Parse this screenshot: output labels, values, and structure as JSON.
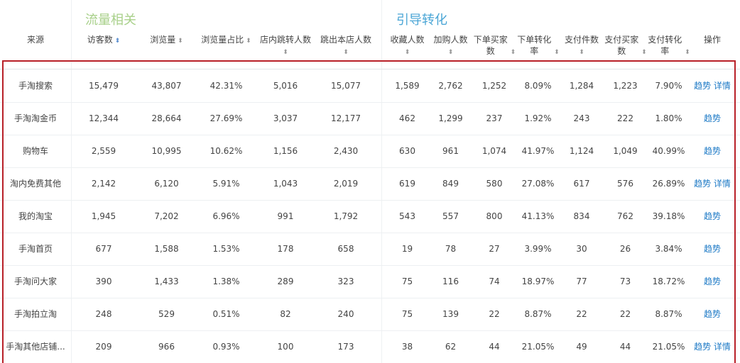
{
  "groups": {
    "traffic": "流量相关",
    "conversion": "引导转化"
  },
  "colors": {
    "traffic_group": "#a8d08a",
    "conversion_group": "#4ba6d6",
    "link": "#1e7ac6",
    "highlight_border": "#b82028"
  },
  "headers": [
    "来源",
    "访客数",
    "浏览量",
    "浏览量占比",
    "店内跳转人数",
    "跳出本店人数",
    "收藏人数",
    "加购人数",
    "下单买家数",
    "下单转化率",
    "支付件数",
    "支付买家数",
    "支付转化率",
    "操作"
  ],
  "sort_icon": "sort-updown-icon",
  "actions": {
    "trend": "趋势",
    "detail": "详情"
  },
  "rows": [
    {
      "source": "手淘搜索",
      "values": [
        "15,479",
        "43,807",
        "42.31%",
        "5,016",
        "15,077",
        "1,589",
        "2,762",
        "1,252",
        "8.09%",
        "1,284",
        "1,223",
        "7.90%"
      ],
      "detail": true
    },
    {
      "source": "手淘淘金币",
      "values": [
        "12,344",
        "28,664",
        "27.69%",
        "3,037",
        "12,177",
        "462",
        "1,299",
        "237",
        "1.92%",
        "243",
        "222",
        "1.80%"
      ],
      "detail": false
    },
    {
      "source": "购物车",
      "values": [
        "2,559",
        "10,995",
        "10.62%",
        "1,156",
        "2,430",
        "630",
        "961",
        "1,074",
        "41.97%",
        "1,124",
        "1,049",
        "40.99%"
      ],
      "detail": false
    },
    {
      "source": "淘内免费其他",
      "values": [
        "2,142",
        "6,120",
        "5.91%",
        "1,043",
        "2,019",
        "619",
        "849",
        "580",
        "27.08%",
        "617",
        "576",
        "26.89%"
      ],
      "detail": true
    },
    {
      "source": "我的淘宝",
      "values": [
        "1,945",
        "7,202",
        "6.96%",
        "991",
        "1,792",
        "543",
        "557",
        "800",
        "41.13%",
        "834",
        "762",
        "39.18%"
      ],
      "detail": false
    },
    {
      "source": "手淘首页",
      "values": [
        "677",
        "1,588",
        "1.53%",
        "178",
        "658",
        "19",
        "78",
        "27",
        "3.99%",
        "30",
        "26",
        "3.84%"
      ],
      "detail": false
    },
    {
      "source": "手淘问大家",
      "values": [
        "390",
        "1,433",
        "1.38%",
        "289",
        "323",
        "75",
        "116",
        "74",
        "18.97%",
        "77",
        "73",
        "18.72%"
      ],
      "detail": false
    },
    {
      "source": "手淘拍立淘",
      "values": [
        "248",
        "529",
        "0.51%",
        "82",
        "240",
        "75",
        "139",
        "22",
        "8.87%",
        "22",
        "22",
        "8.87%"
      ],
      "detail": false
    },
    {
      "source": "手淘其他店铺...",
      "values": [
        "209",
        "966",
        "0.93%",
        "100",
        "173",
        "38",
        "62",
        "44",
        "21.05%",
        "49",
        "44",
        "21.05%"
      ],
      "detail": true
    }
  ]
}
